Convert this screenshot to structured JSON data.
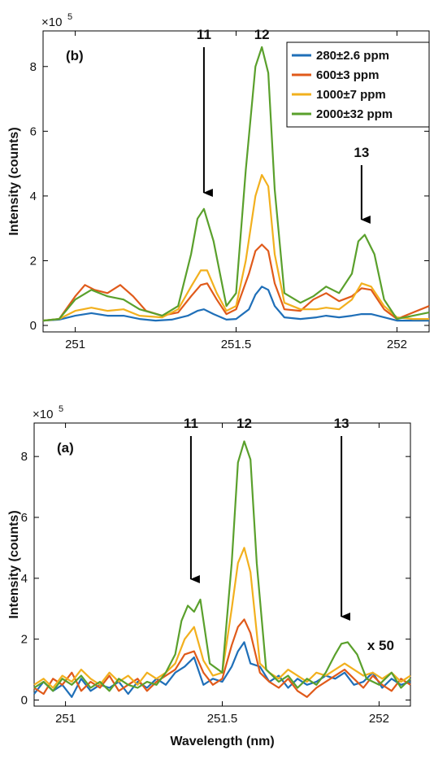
{
  "chart_data": [
    {
      "type": "line",
      "panel_label": "(b)",
      "ylabel": "Intensity (counts)",
      "y_multiplier": "×10",
      "y_multiplier_exp": "5",
      "xlim": [
        250.9,
        252.1
      ],
      "ylim": [
        -0.2,
        9.1
      ],
      "x_ticks": [
        251,
        251.5,
        252
      ],
      "x_tick_labels": [
        "251",
        "251.5",
        "252"
      ],
      "y_ticks": [
        0,
        2,
        4,
        6,
        8
      ],
      "y_tick_labels": [
        "0",
        "2",
        "4",
        "6",
        "8"
      ],
      "legend": {
        "position": "top-right"
      },
      "annotations": [
        {
          "text": "11",
          "x": 251.4
        },
        {
          "text": "12",
          "x": 251.58
        },
        {
          "text": "13",
          "x": 251.89
        }
      ],
      "series": [
        {
          "name": "280±2.6 ppm",
          "color": "#1f6fb8",
          "x": [
            250.9,
            250.95,
            251.0,
            251.05,
            251.1,
            251.15,
            251.2,
            251.25,
            251.3,
            251.35,
            251.38,
            251.4,
            251.43,
            251.47,
            251.5,
            251.54,
            251.56,
            251.58,
            251.6,
            251.62,
            251.65,
            251.7,
            251.75,
            251.78,
            251.82,
            251.86,
            251.89,
            251.92,
            251.96,
            252.0,
            252.05,
            252.1
          ],
          "y": [
            0.15,
            0.18,
            0.3,
            0.38,
            0.3,
            0.3,
            0.2,
            0.15,
            0.18,
            0.3,
            0.45,
            0.5,
            0.35,
            0.18,
            0.2,
            0.5,
            0.95,
            1.2,
            1.1,
            0.6,
            0.25,
            0.2,
            0.25,
            0.3,
            0.25,
            0.3,
            0.35,
            0.35,
            0.25,
            0.15,
            0.15,
            0.15
          ]
        },
        {
          "name": "600±3 ppm",
          "color": "#e05a1a",
          "x": [
            250.9,
            250.95,
            251.0,
            251.03,
            251.06,
            251.1,
            251.14,
            251.18,
            251.22,
            251.27,
            251.32,
            251.36,
            251.39,
            251.41,
            251.44,
            251.47,
            251.5,
            251.54,
            251.56,
            251.58,
            251.6,
            251.62,
            251.65,
            251.7,
            251.74,
            251.78,
            251.82,
            251.86,
            251.89,
            251.92,
            251.96,
            252.0,
            252.05,
            252.1
          ],
          "y": [
            0.15,
            0.2,
            0.9,
            1.25,
            1.1,
            1.0,
            1.25,
            0.9,
            0.45,
            0.3,
            0.4,
            0.9,
            1.25,
            1.3,
            0.8,
            0.35,
            0.5,
            1.6,
            2.3,
            2.5,
            2.3,
            1.3,
            0.5,
            0.45,
            0.8,
            1.0,
            0.75,
            0.9,
            1.15,
            1.1,
            0.5,
            0.2,
            0.4,
            0.6
          ]
        },
        {
          "name": "1000±7 ppm",
          "color": "#f2b01e",
          "x": [
            250.9,
            250.95,
            251.0,
            251.05,
            251.1,
            251.15,
            251.2,
            251.27,
            251.32,
            251.36,
            251.39,
            251.41,
            251.44,
            251.47,
            251.5,
            251.53,
            251.56,
            251.58,
            251.6,
            251.62,
            251.65,
            251.7,
            251.75,
            251.78,
            251.82,
            251.86,
            251.89,
            251.92,
            251.96,
            252.0,
            252.05,
            252.1
          ],
          "y": [
            0.15,
            0.2,
            0.45,
            0.55,
            0.45,
            0.5,
            0.3,
            0.25,
            0.5,
            1.2,
            1.7,
            1.7,
            1.0,
            0.45,
            0.6,
            2.0,
            4.0,
            4.65,
            4.3,
            2.2,
            0.7,
            0.5,
            0.5,
            0.55,
            0.5,
            0.8,
            1.3,
            1.2,
            0.6,
            0.25,
            0.2,
            0.2
          ]
        },
        {
          "name": "2000±32 ppm",
          "color": "#5aa02c",
          "x": [
            250.9,
            250.95,
            251.0,
            251.05,
            251.1,
            251.15,
            251.2,
            251.27,
            251.32,
            251.36,
            251.38,
            251.4,
            251.43,
            251.47,
            251.5,
            251.53,
            251.56,
            251.58,
            251.6,
            251.62,
            251.65,
            251.7,
            251.74,
            251.78,
            251.82,
            251.86,
            251.88,
            251.9,
            251.93,
            251.96,
            252.0,
            252.05,
            252.1
          ],
          "y": [
            0.15,
            0.2,
            0.8,
            1.1,
            0.9,
            0.8,
            0.5,
            0.3,
            0.6,
            2.2,
            3.3,
            3.6,
            2.6,
            0.6,
            1.0,
            4.8,
            8.0,
            8.6,
            7.8,
            4.2,
            1.0,
            0.7,
            0.9,
            1.2,
            1.0,
            1.6,
            2.6,
            2.8,
            2.2,
            0.8,
            0.2,
            0.3,
            0.4
          ]
        }
      ]
    },
    {
      "type": "line",
      "panel_label": "(a)",
      "ylabel": "Intensity (counts)",
      "xlabel": "Wavelength (nm)",
      "y_multiplier": "×10",
      "y_multiplier_exp": "5",
      "xlim": [
        250.9,
        252.1
      ],
      "ylim": [
        -0.2,
        9.1
      ],
      "x_ticks": [
        251,
        251.5,
        252
      ],
      "x_tick_labels": [
        "251",
        "251.5",
        "252"
      ],
      "y_ticks": [
        0,
        2,
        4,
        6,
        8
      ],
      "y_tick_labels": [
        "0",
        "2",
        "4",
        "6",
        "8"
      ],
      "annotations": [
        {
          "text": "11",
          "x": 251.4
        },
        {
          "text": "12",
          "x": 251.57
        },
        {
          "text": "13",
          "x": 251.88
        },
        {
          "text": "x 50",
          "x": 252.0
        }
      ],
      "series": [
        {
          "name": "280±2.6 ppm",
          "color": "#1f6fb8",
          "x": [
            250.9,
            250.93,
            250.96,
            250.99,
            251.02,
            251.05,
            251.08,
            251.11,
            251.14,
            251.17,
            251.2,
            251.23,
            251.26,
            251.29,
            251.32,
            251.35,
            251.38,
            251.41,
            251.44,
            251.47,
            251.5,
            251.53,
            251.55,
            251.57,
            251.59,
            251.62,
            251.65,
            251.68,
            251.71,
            251.74,
            251.77,
            251.8,
            251.83,
            251.86,
            251.89,
            251.92,
            251.95,
            251.98,
            252.01,
            252.04,
            252.07,
            252.1
          ],
          "y": [
            0.2,
            0.6,
            0.3,
            0.5,
            0.1,
            0.7,
            0.3,
            0.5,
            0.4,
            0.6,
            0.2,
            0.6,
            0.4,
            0.7,
            0.5,
            0.9,
            1.1,
            1.4,
            0.5,
            0.7,
            0.6,
            1.1,
            1.6,
            1.9,
            1.2,
            1.1,
            0.6,
            0.8,
            0.4,
            0.7,
            0.5,
            0.6,
            0.8,
            0.7,
            0.9,
            0.5,
            0.6,
            0.9,
            0.4,
            0.7,
            0.5,
            0.6
          ]
        },
        {
          "name": "600±3 ppm",
          "color": "#e05a1a",
          "x": [
            250.9,
            250.93,
            250.96,
            250.99,
            251.02,
            251.05,
            251.08,
            251.11,
            251.14,
            251.17,
            251.2,
            251.23,
            251.26,
            251.29,
            251.32,
            251.35,
            251.38,
            251.41,
            251.44,
            251.47,
            251.5,
            251.53,
            251.55,
            251.57,
            251.59,
            251.62,
            251.65,
            251.68,
            251.71,
            251.74,
            251.77,
            251.8,
            251.83,
            251.86,
            251.89,
            251.92,
            251.95,
            251.98,
            252.01,
            252.04,
            252.07,
            252.1
          ],
          "y": [
            0.4,
            0.2,
            0.7,
            0.5,
            0.9,
            0.3,
            0.6,
            0.4,
            0.8,
            0.3,
            0.5,
            0.7,
            0.3,
            0.6,
            0.8,
            1.0,
            1.5,
            1.6,
            0.9,
            0.5,
            0.7,
            1.8,
            2.4,
            2.65,
            2.2,
            0.9,
            0.6,
            0.4,
            0.7,
            0.3,
            0.1,
            0.4,
            0.6,
            0.8,
            1.0,
            0.7,
            0.4,
            0.8,
            0.5,
            0.3,
            0.7,
            0.5
          ]
        },
        {
          "name": "1000±7 ppm",
          "color": "#f2b01e",
          "x": [
            250.9,
            250.93,
            250.96,
            250.99,
            251.02,
            251.05,
            251.08,
            251.11,
            251.14,
            251.17,
            251.2,
            251.23,
            251.26,
            251.29,
            251.32,
            251.35,
            251.38,
            251.41,
            251.44,
            251.47,
            251.5,
            251.53,
            251.55,
            251.57,
            251.59,
            251.62,
            251.65,
            251.68,
            251.71,
            251.74,
            251.77,
            251.8,
            251.83,
            251.86,
            251.89,
            251.92,
            251.95,
            251.98,
            252.01,
            252.04,
            252.07,
            252.1
          ],
          "y": [
            0.5,
            0.7,
            0.4,
            0.8,
            0.6,
            1.0,
            0.7,
            0.5,
            0.9,
            0.6,
            0.8,
            0.5,
            0.9,
            0.7,
            0.9,
            1.2,
            2.0,
            2.4,
            1.3,
            0.8,
            0.9,
            3.0,
            4.5,
            5.0,
            4.2,
            1.2,
            0.9,
            0.7,
            1.0,
            0.8,
            0.6,
            0.9,
            0.8,
            1.0,
            1.2,
            1.0,
            0.8,
            0.9,
            0.7,
            0.9,
            0.6,
            0.8
          ]
        },
        {
          "name": "2000±32 ppm",
          "color": "#5aa02c",
          "x": [
            250.9,
            250.93,
            250.96,
            250.99,
            251.02,
            251.05,
            251.08,
            251.11,
            251.14,
            251.17,
            251.2,
            251.23,
            251.26,
            251.29,
            251.32,
            251.35,
            251.37,
            251.39,
            251.41,
            251.43,
            251.46,
            251.5,
            251.53,
            251.55,
            251.57,
            251.59,
            251.61,
            251.64,
            251.68,
            251.71,
            251.74,
            251.77,
            251.8,
            251.83,
            251.86,
            251.88,
            251.9,
            251.93,
            251.96,
            252.0,
            252.04,
            252.07,
            252.1
          ],
          "y": [
            0.4,
            0.6,
            0.3,
            0.7,
            0.5,
            0.8,
            0.4,
            0.6,
            0.3,
            0.7,
            0.5,
            0.4,
            0.6,
            0.5,
            0.9,
            1.5,
            2.6,
            3.1,
            2.9,
            3.3,
            1.2,
            0.9,
            4.5,
            7.8,
            8.5,
            7.9,
            4.5,
            1.0,
            0.6,
            0.8,
            0.4,
            0.7,
            0.5,
            0.9,
            1.5,
            1.85,
            1.9,
            1.5,
            0.7,
            0.5,
            0.9,
            0.4,
            0.7
          ]
        }
      ]
    }
  ]
}
